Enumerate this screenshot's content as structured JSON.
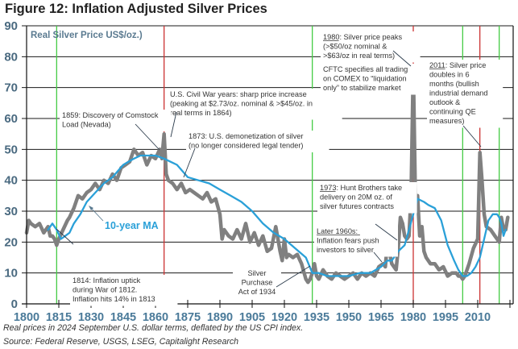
{
  "title": "Figure 12: Inflation Adjusted Silver Prices",
  "footnotes": [
    "Real prices in 2024 September U.S. dollar terms, deflated by the US CPI index.",
    "Source: Federal Reserve, USGS, LSEG, Capitalight Research"
  ],
  "chart_data": {
    "type": "line",
    "title": "Figure 12: Inflation Adjusted Silver Prices",
    "ylabel": "Real Silver Price US$/oz.)",
    "xlabel": "",
    "xlim": [
      1800,
      2025
    ],
    "ylim": [
      0,
      90
    ],
    "grid": "horizontal",
    "yticks": [
      0,
      10,
      20,
      30,
      40,
      50,
      60,
      70,
      80,
      90
    ],
    "xticks": [
      1800,
      1815,
      1830,
      1845,
      1860,
      1875,
      1890,
      1905,
      1920,
      1935,
      1950,
      1965,
      1980,
      1995,
      2010
    ],
    "series": [
      {
        "name": "Real Silver Price",
        "color": "#808080",
        "x": [
          1800,
          1801,
          1802,
          1804,
          1806,
          1808,
          1810,
          1811,
          1812,
          1813,
          1814,
          1815,
          1817,
          1819,
          1820,
          1822,
          1824,
          1826,
          1828,
          1830,
          1832,
          1834,
          1836,
          1838,
          1840,
          1842,
          1844,
          1846,
          1848,
          1850,
          1852,
          1854,
          1856,
          1858,
          1860,
          1862,
          1863,
          1864,
          1865,
          1866,
          1868,
          1870,
          1872,
          1874,
          1876,
          1878,
          1880,
          1882,
          1884,
          1886,
          1888,
          1890,
          1891,
          1892,
          1894,
          1896,
          1898,
          1900,
          1902,
          1904,
          1906,
          1908,
          1910,
          1912,
          1914,
          1916,
          1918,
          1919,
          1920,
          1921,
          1922,
          1924,
          1926,
          1928,
          1930,
          1931,
          1932,
          1933,
          1934,
          1935,
          1936,
          1938,
          1940,
          1942,
          1944,
          1946,
          1948,
          1950,
          1952,
          1954,
          1956,
          1958,
          1960,
          1962,
          1964,
          1966,
          1967,
          1968,
          1970,
          1972,
          1973,
          1974,
          1975,
          1976,
          1977,
          1978,
          1979,
          1980,
          1981,
          1982,
          1983,
          1984,
          1985,
          1986,
          1988,
          1990,
          1992,
          1994,
          1996,
          1998,
          2000,
          2001,
          2002,
          2003,
          2004,
          2006,
          2008,
          2010,
          2011,
          2012,
          2013,
          2014,
          2016,
          2018,
          2019,
          2020,
          2021,
          2022,
          2023,
          2024
        ],
        "values": [
          23,
          27,
          26,
          25,
          26,
          23,
          25,
          22,
          22,
          21,
          19,
          21,
          24,
          27,
          28,
          31,
          35,
          34,
          36,
          37,
          39,
          37,
          40,
          39,
          42,
          40,
          44,
          45,
          46,
          50,
          48,
          49,
          45,
          48,
          47,
          50,
          47,
          55,
          42,
          40,
          39,
          37,
          39,
          36,
          37,
          36,
          35,
          34,
          36,
          33,
          34,
          29,
          21,
          24,
          22,
          21,
          24,
          21,
          26,
          20,
          23,
          19,
          22,
          17,
          18,
          25,
          17,
          14,
          21,
          15,
          16,
          15,
          16,
          13,
          8,
          7,
          8,
          10,
          13,
          9,
          8,
          11,
          9,
          8,
          10,
          9,
          8,
          9,
          10,
          8,
          10,
          9,
          10,
          9,
          12,
          13,
          12,
          20,
          13,
          11,
          18,
          28,
          26,
          22,
          21,
          22,
          35,
          77,
          33,
          35,
          22,
          25,
          17,
          15,
          13,
          13,
          11,
          12,
          9,
          10,
          10,
          9,
          9,
          8,
          9,
          13,
          18,
          21,
          49,
          40,
          29,
          25,
          24,
          22,
          21,
          20,
          28,
          24,
          24,
          28
        ]
      },
      {
        "name": "10-year MA",
        "color": "#2aa0d8",
        "x": [
          1810,
          1812,
          1814,
          1816,
          1818,
          1820,
          1822,
          1825,
          1828,
          1832,
          1836,
          1840,
          1845,
          1850,
          1853,
          1857,
          1860,
          1864,
          1867,
          1870,
          1875,
          1880,
          1885,
          1890,
          1895,
          1900,
          1905,
          1910,
          1915,
          1920,
          1925,
          1930,
          1933,
          1936,
          1940,
          1945,
          1950,
          1955,
          1960,
          1965,
          1968,
          1970,
          1973,
          1976,
          1978,
          1980,
          1982,
          1985,
          1987,
          1990,
          1993,
          1996,
          1999,
          2001,
          2003,
          2005,
          2007,
          2009,
          2011,
          2013,
          2015,
          2017,
          2019,
          2020,
          2021,
          2022,
          2023
        ],
        "values": [
          24,
          26,
          24,
          21,
          22,
          23,
          26,
          29,
          33,
          36,
          39,
          41,
          45,
          47,
          48,
          48,
          48,
          47,
          46,
          45,
          41,
          40,
          39,
          37,
          35,
          33,
          30,
          26,
          23,
          21,
          18,
          15,
          10,
          10,
          9,
          9,
          9,
          10,
          10,
          12,
          14,
          14,
          17,
          19,
          24,
          29,
          34,
          33,
          32,
          31,
          27,
          19,
          14,
          11,
          9,
          9,
          10,
          12,
          15,
          21,
          27,
          29,
          29,
          28,
          26,
          22,
          24
        ]
      }
    ],
    "reference_lines": [
      {
        "year": 1814,
        "color": "#44cc44"
      },
      {
        "year": 1864,
        "color": "#cc3333"
      },
      {
        "year": 1933,
        "color": "#44cc44"
      },
      {
        "year": 1980,
        "color": "#cc3333"
      },
      {
        "year": 2003,
        "color": "#44cc44"
      },
      {
        "year": 2011,
        "color": "#cc3333"
      },
      {
        "year": 2020,
        "color": "#44cc44"
      }
    ],
    "series_label": "Real Silver Price US$/oz.)",
    "ma_label": "10-year MA",
    "annotations": [
      {
        "id": "civil-war",
        "lines": [
          "U.S. Civil War years: sharp price increase",
          "(peaking at $2.73/oz. nominal & >$45/oz. in",
          "real terms in 1864)"
        ]
      },
      {
        "id": "comstock",
        "lines": [
          "1859: Discovery of Comstock",
          "Load (Nevada)"
        ]
      },
      {
        "id": "demonetization",
        "lines": [
          "1873: U.S. demonetization of silver",
          "(no longer considered legal tender)"
        ]
      },
      {
        "id": "peak-1980",
        "underline": "1980",
        "lines": [
          "1980: Silver price peaks",
          "(>$50/oz nominal &",
          ">$63/oz in real terms)"
        ]
      },
      {
        "id": "cftc",
        "lines": [
          "CFTC specifies all trading",
          "on COMEX to “liquidation",
          "only” to stabilize market"
        ]
      },
      {
        "id": "peak-2011",
        "underline": "2011",
        "lines": [
          "2011: Silver price",
          "doubles in 6",
          "months (bullish",
          "industrial demand",
          "outlook &",
          "continuing QE",
          "measures)"
        ]
      },
      {
        "id": "hunt-1973",
        "underline": "1973",
        "lines": [
          "1973: Hunt Brothers take",
          "delivery on 20M oz. of",
          "silver futures contracts"
        ]
      },
      {
        "id": "later-1960s",
        "underline": "Later 1960s",
        "lines": [
          "Later 1960s:",
          "Inflation fears push",
          "investors to silver"
        ]
      },
      {
        "id": "purchase-act",
        "lines": [
          "Silver",
          "Purchase",
          "Act of 1934"
        ]
      },
      {
        "id": "war-1812",
        "lines": [
          "1814: Inflation uptick",
          "during War of 1812.",
          "Inflation hits 14% in 1813"
        ]
      }
    ]
  }
}
